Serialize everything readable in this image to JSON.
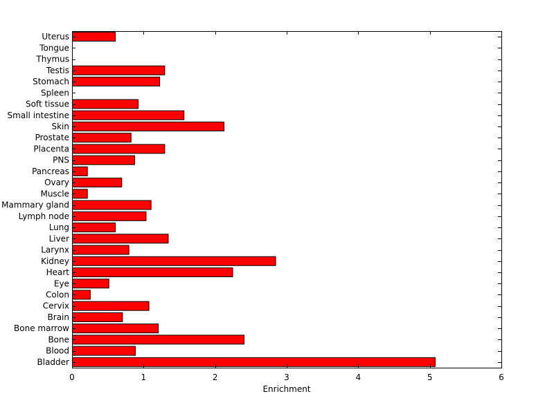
{
  "chart_data": {
    "type": "bar",
    "orientation": "horizontal",
    "title": "",
    "xlabel": "Enrichment",
    "ylabel": "",
    "xlim": [
      0,
      6
    ],
    "xticks": [
      0,
      1,
      2,
      3,
      4,
      5,
      6
    ],
    "grid": false,
    "legend": "none",
    "bar_color": "#ff0000",
    "bar_edge_color": "#000000",
    "categories": [
      "Uterus",
      "Tongue",
      "Thymus",
      "Testis",
      "Stomach",
      "Spleen",
      "Soft tissue",
      "Small intestine",
      "Skin",
      "Prostate",
      "Placenta",
      "PNS",
      "Pancreas",
      "Ovary",
      "Muscle",
      "Mammary gland",
      "Lymph node",
      "Lung",
      "Liver",
      "Larynx",
      "Kidney",
      "Heart",
      "Eye",
      "Colon",
      "Cervix",
      "Brain",
      "Bone marrow",
      "Bone",
      "Blood",
      "Bladder"
    ],
    "values": [
      0.6,
      0,
      0,
      1.29,
      1.22,
      0,
      0.92,
      1.56,
      2.12,
      0.82,
      1.29,
      0.87,
      0.21,
      0.69,
      0.21,
      1.1,
      1.03,
      0.6,
      1.34,
      0.79,
      2.84,
      2.24,
      0.51,
      0.25,
      1.07,
      0.7,
      1.2,
      2.4,
      0.88,
      5.07
    ]
  }
}
